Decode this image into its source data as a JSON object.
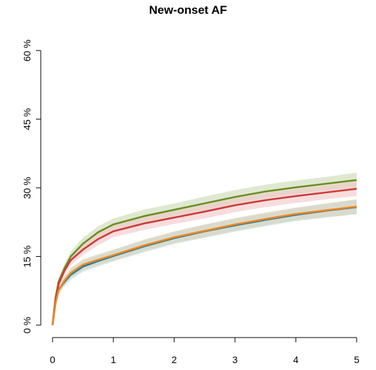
{
  "chart_data": {
    "type": "line",
    "title": "New-onset AF",
    "xlabel": "",
    "ylabel": "",
    "xlim": [
      0,
      5
    ],
    "ylim": [
      0,
      60
    ],
    "x_ticks": [
      0,
      1,
      2,
      3,
      4,
      5
    ],
    "x_tick_labels": [
      "0",
      "1",
      "2",
      "3",
      "4",
      "5"
    ],
    "y_ticks": [
      0,
      15,
      30,
      45,
      60
    ],
    "y_tick_labels": [
      "0 %",
      "15 %",
      "30 %",
      "45 %",
      "60 %"
    ],
    "grid": false,
    "legend": "none",
    "x": [
      0,
      0.05,
      0.1,
      0.2,
      0.3,
      0.5,
      0.75,
      1,
      1.5,
      2,
      2.5,
      3,
      3.5,
      4,
      4.5,
      5
    ],
    "series": [
      {
        "color": "#6b8e23",
        "band_color": "#c9d9b0",
        "values": [
          0,
          6,
          9.5,
          12.5,
          15,
          17.8,
          20.3,
          22,
          23.8,
          25.2,
          26.6,
          28,
          29.2,
          30.1,
          30.9,
          31.7
        ],
        "lower": [
          0,
          5.2,
          8.6,
          11.5,
          13.9,
          16.5,
          19,
          20.7,
          22.4,
          23.8,
          25.1,
          26.5,
          27.7,
          28.6,
          29.4,
          30.1
        ],
        "upper": [
          0,
          6.8,
          10.4,
          13.5,
          16.1,
          19.1,
          21.6,
          23.3,
          25.2,
          26.6,
          28.1,
          29.5,
          30.7,
          31.6,
          32.4,
          33.3
        ]
      },
      {
        "color": "#cd3b3b",
        "band_color": "#f2c6c6",
        "values": [
          0,
          5.8,
          9,
          12,
          14.2,
          16.5,
          18.8,
          20.5,
          22.2,
          23.5,
          24.8,
          26.2,
          27.3,
          28.2,
          29,
          29.8
        ],
        "lower": [
          0,
          5,
          8.1,
          11,
          13.1,
          15.3,
          17.5,
          19.2,
          20.8,
          22.1,
          23.3,
          24.7,
          25.8,
          26.7,
          27.5,
          28.2
        ],
        "upper": [
          0,
          6.6,
          9.9,
          13,
          15.3,
          17.7,
          20.1,
          21.8,
          23.6,
          24.9,
          26.3,
          27.7,
          28.8,
          29.7,
          30.5,
          31.4
        ]
      },
      {
        "color": "#1f7fa0",
        "band_color": "#bfe0e2",
        "values": [
          0,
          5,
          7.8,
          9.5,
          11,
          12.8,
          14,
          15.1,
          17.2,
          19,
          20.5,
          21.8,
          23,
          24.1,
          25,
          25.8
        ],
        "lower": [
          0,
          4.2,
          6.9,
          8.5,
          9.9,
          11.6,
          12.8,
          13.9,
          15.9,
          17.7,
          19.1,
          20.4,
          21.6,
          22.7,
          23.5,
          24.2
        ],
        "upper": [
          0,
          5.8,
          8.7,
          10.5,
          12.1,
          14,
          15.2,
          16.3,
          18.5,
          20.3,
          21.9,
          23.2,
          24.4,
          25.5,
          26.5,
          27.4
        ]
      },
      {
        "color": "#f0861e",
        "band_color": "#d9cfb4",
        "values": [
          0,
          4.8,
          7.6,
          9.8,
          11.4,
          13.2,
          14.3,
          15.3,
          17.4,
          19.2,
          20.6,
          22,
          23.2,
          24.3,
          25.1,
          25.9
        ],
        "lower": [
          0,
          4,
          6.7,
          8.8,
          10.3,
          12,
          13.1,
          14.1,
          16.1,
          17.9,
          19.2,
          20.6,
          21.8,
          22.9,
          23.6,
          24.3
        ],
        "upper": [
          0,
          5.6,
          8.5,
          10.8,
          12.5,
          14.4,
          15.5,
          16.5,
          18.7,
          20.5,
          22,
          23.4,
          24.6,
          25.7,
          26.6,
          27.5
        ]
      }
    ]
  }
}
